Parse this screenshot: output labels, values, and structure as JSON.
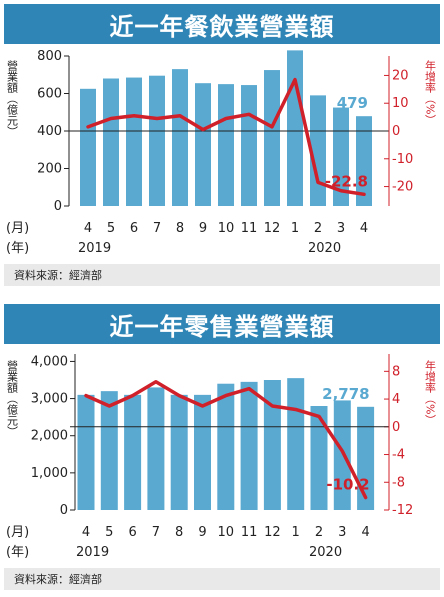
{
  "chart_data": [
    {
      "type": "bar",
      "title": "近一年餐飲業營業額",
      "ylabel_left": "營業額（億元）",
      "ylabel_right": "年增率（%）",
      "month_prefix": "(月)",
      "year_prefix": "(年)",
      "categories": [
        "4",
        "5",
        "6",
        "7",
        "8",
        "9",
        "10",
        "11",
        "12",
        "1",
        "2",
        "3",
        "4"
      ],
      "year_labels": [
        {
          "text": "2019",
          "at": "4"
        },
        {
          "text": "2020",
          "at": "2"
        }
      ],
      "series": [
        {
          "axis": "left",
          "kind": "bar",
          "color": "#5aa9d1",
          "values": [
            625,
            680,
            685,
            695,
            730,
            655,
            650,
            645,
            725,
            830,
            590,
            525,
            479
          ]
        },
        {
          "axis": "right",
          "kind": "line",
          "color": "#d0202a",
          "values": [
            1.5,
            4.5,
            5.5,
            4.5,
            5.5,
            0.5,
            4.5,
            6.0,
            1.5,
            18.5,
            -18.5,
            -21.5,
            -22.8
          ]
        }
      ],
      "left_axis": {
        "ylim": [
          0,
          800
        ],
        "ticks": [
          "0",
          "200",
          "400",
          "600",
          "800"
        ]
      },
      "right_axis": {
        "ylim": [
          -27,
          27
        ],
        "ticks": [
          "20",
          "10",
          "0",
          "-10",
          "-20"
        ]
      },
      "annotations": [
        {
          "text": "479",
          "series": 0,
          "color": "#5aa9d1"
        },
        {
          "text": "-22.8",
          "series": 1,
          "color": "#d0202a"
        }
      ],
      "source": "資料來源：經濟部"
    },
    {
      "type": "bar",
      "title": "近一年零售業營業額",
      "ylabel_left": "營業額（億元）",
      "ylabel_right": "年增率（%）",
      "month_prefix": "(月)",
      "year_prefix": "(年)",
      "categories": [
        "4",
        "5",
        "6",
        "7",
        "8",
        "9",
        "10",
        "11",
        "12",
        "1",
        "2",
        "3",
        "4"
      ],
      "year_labels": [
        {
          "text": "2019",
          "at": "4"
        },
        {
          "text": "2020",
          "at": "2"
        }
      ],
      "series": [
        {
          "axis": "left",
          "kind": "bar",
          "color": "#5aa9d1",
          "values": [
            3100,
            3200,
            3100,
            3300,
            3100,
            3100,
            3400,
            3450,
            3500,
            3550,
            2800,
            2950,
            2778
          ]
        },
        {
          "axis": "right",
          "kind": "line",
          "color": "#d0202a",
          "values": [
            4.5,
            3.0,
            4.5,
            6.5,
            4.5,
            3.0,
            4.5,
            5.5,
            3.0,
            2.5,
            1.5,
            -3.5,
            -10.2
          ]
        }
      ],
      "left_axis": {
        "ylim": [
          0,
          4200
        ],
        "ticks": [
          "0",
          "1,000",
          "2,000",
          "3,000",
          "4,000"
        ]
      },
      "right_axis": {
        "ylim": [
          -12,
          10.5
        ],
        "ticks": [
          "8",
          "4",
          "0",
          "-4",
          "-8",
          "-12"
        ]
      },
      "annotations": [
        {
          "text": "2,778",
          "series": 0,
          "color": "#5aa9d1"
        },
        {
          "text": "-10.2",
          "series": 1,
          "color": "#d0202a"
        }
      ],
      "source": "資料來源：經濟部"
    }
  ]
}
